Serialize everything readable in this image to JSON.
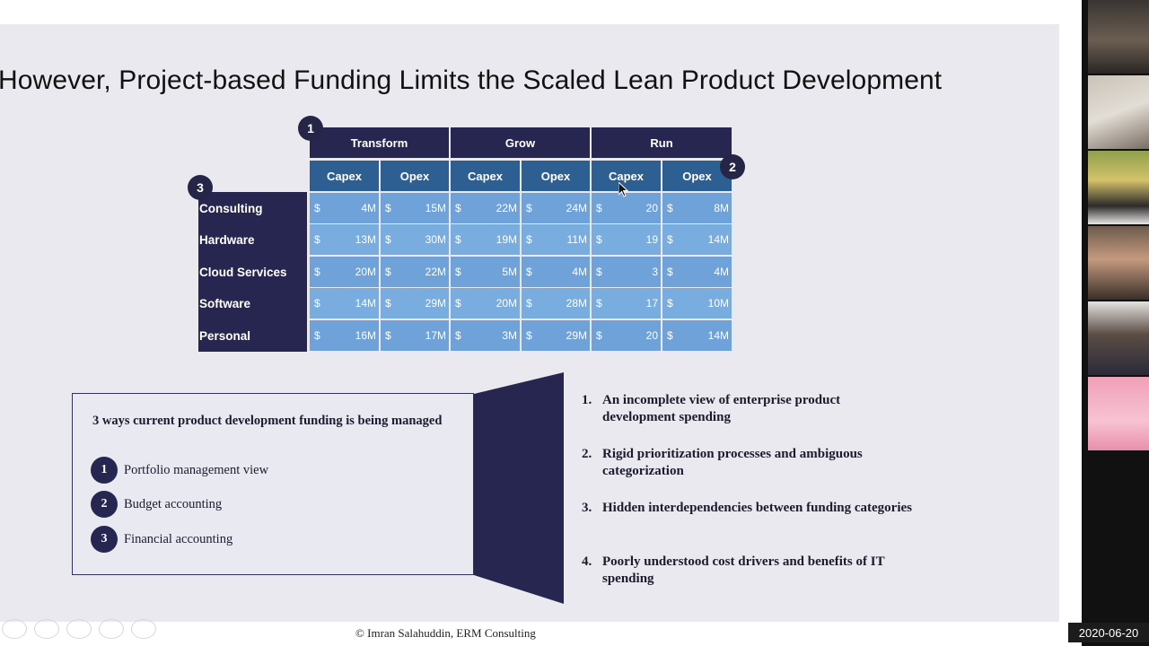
{
  "slide": {
    "title": "However, Project-based Funding Limits the Scaled Lean Product Development",
    "footer": "© Imran Salahuddin, ERM Consulting"
  },
  "table": {
    "badges": [
      "1",
      "2",
      "3"
    ],
    "groups": [
      "Transform",
      "Grow",
      "Run"
    ],
    "subheaders": [
      "Capex",
      "Opex",
      "Capex",
      "Opex",
      "Capex",
      "Opex"
    ],
    "rows": [
      {
        "label": "Consulting",
        "cells": [
          "4M",
          "15M",
          "22M",
          "24M",
          "20",
          "8M"
        ]
      },
      {
        "label": "Hardware",
        "cells": [
          "13M",
          "30M",
          "19M",
          "11M",
          "19",
          "14M"
        ]
      },
      {
        "label": "Cloud Services",
        "cells": [
          "20M",
          "22M",
          "5M",
          "4M",
          "3",
          "4M"
        ]
      },
      {
        "label": "Software",
        "cells": [
          "14M",
          "29M",
          "20M",
          "28M",
          "17",
          "10M"
        ]
      },
      {
        "label": "Personal",
        "cells": [
          "16M",
          "17M",
          "3M",
          "29M",
          "20",
          "14M"
        ]
      }
    ],
    "currency": "$"
  },
  "ways": {
    "title": "3 ways current product development funding is being managed",
    "items": [
      {
        "num": "1",
        "label": "Portfolio management view"
      },
      {
        "num": "2",
        "label": "Budget accounting"
      },
      {
        "num": "3",
        "label": "Financial accounting"
      }
    ]
  },
  "reasons": [
    {
      "num": "1.",
      "text": "An incomplete view of enterprise product development spending"
    },
    {
      "num": "2.",
      "text": "Rigid prioritization processes and ambiguous categorization"
    },
    {
      "num": "3.",
      "text": "Hidden interdependencies between funding categories"
    },
    {
      "num": "4.",
      "text": "Poorly understood cost drivers and benefits of IT spending"
    }
  ],
  "meeting": {
    "date": "2020-06-20"
  },
  "colors": {
    "navy": "#262650",
    "header_blue": "#2e5f92",
    "cell_blue": "#6ea2d8",
    "slide_bg": "#e9e9ef"
  }
}
